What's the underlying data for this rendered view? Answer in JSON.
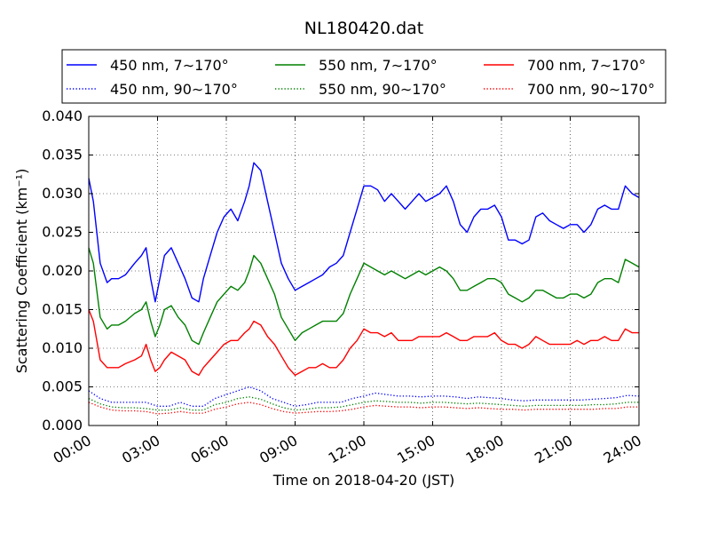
{
  "chart_data": {
    "type": "line",
    "title": "NL180420.dat",
    "xlabel": "Time on 2018-04-20 (JST)",
    "ylabel": "Scattering Coefficient (km⁻¹)",
    "xlim": [
      0,
      24
    ],
    "ylim": [
      0.0,
      0.04
    ],
    "x_ticks": [
      {
        "value": 0,
        "label": "00:00"
      },
      {
        "value": 3,
        "label": "03:00"
      },
      {
        "value": 6,
        "label": "06:00"
      },
      {
        "value": 9,
        "label": "09:00"
      },
      {
        "value": 12,
        "label": "12:00"
      },
      {
        "value": 15,
        "label": "15:00"
      },
      {
        "value": 18,
        "label": "18:00"
      },
      {
        "value": 21,
        "label": "21:00"
      },
      {
        "value": 24,
        "label": "24:00"
      }
    ],
    "y_ticks": [
      {
        "value": 0.0,
        "label": "0.000"
      },
      {
        "value": 0.005,
        "label": "0.005"
      },
      {
        "value": 0.01,
        "label": "0.010"
      },
      {
        "value": 0.015,
        "label": "0.015"
      },
      {
        "value": 0.02,
        "label": "0.020"
      },
      {
        "value": 0.025,
        "label": "0.025"
      },
      {
        "value": 0.03,
        "label": "0.030"
      },
      {
        "value": 0.035,
        "label": "0.035"
      },
      {
        "value": 0.04,
        "label": "0.040"
      }
    ],
    "grid": true,
    "legend_position": "top",
    "x_unit": "hours after 00:00",
    "series": [
      {
        "name": "450 nm, 7∼170°",
        "color": "#0000ff",
        "dash": "solid",
        "x": [
          0,
          0.2,
          0.5,
          0.8,
          1.0,
          1.3,
          1.6,
          2.0,
          2.3,
          2.5,
          2.7,
          2.9,
          3.1,
          3.3,
          3.6,
          3.9,
          4.2,
          4.5,
          4.8,
          5.0,
          5.3,
          5.6,
          5.9,
          6.2,
          6.5,
          6.8,
          7.0,
          7.2,
          7.5,
          7.8,
          8.1,
          8.4,
          8.7,
          9.0,
          9.3,
          9.6,
          9.9,
          10.2,
          10.5,
          10.8,
          11.1,
          11.4,
          11.7,
          12.0,
          12.3,
          12.6,
          12.9,
          13.2,
          13.5,
          13.8,
          14.1,
          14.4,
          14.7,
          15.0,
          15.3,
          15.6,
          15.9,
          16.2,
          16.5,
          16.8,
          17.1,
          17.4,
          17.7,
          18.0,
          18.3,
          18.6,
          18.9,
          19.2,
          19.5,
          19.8,
          20.1,
          20.4,
          20.7,
          21.0,
          21.3,
          21.6,
          21.9,
          22.2,
          22.5,
          22.8,
          23.1,
          23.4,
          23.7,
          24.0
        ],
        "y": [
          0.032,
          0.029,
          0.021,
          0.0185,
          0.019,
          0.019,
          0.0195,
          0.021,
          0.022,
          0.023,
          0.019,
          0.016,
          0.019,
          0.022,
          0.023,
          0.021,
          0.019,
          0.0165,
          0.016,
          0.019,
          0.022,
          0.025,
          0.027,
          0.028,
          0.0265,
          0.029,
          0.031,
          0.034,
          0.033,
          0.029,
          0.025,
          0.021,
          0.019,
          0.0175,
          0.018,
          0.0185,
          0.019,
          0.0195,
          0.0205,
          0.021,
          0.022,
          0.025,
          0.028,
          0.031,
          0.031,
          0.0305,
          0.029,
          0.03,
          0.029,
          0.028,
          0.029,
          0.03,
          0.029,
          0.0295,
          0.03,
          0.031,
          0.029,
          0.026,
          0.025,
          0.027,
          0.028,
          0.028,
          0.0285,
          0.027,
          0.024,
          0.024,
          0.0235,
          0.024,
          0.027,
          0.0275,
          0.0265,
          0.026,
          0.0255,
          0.026,
          0.026,
          0.025,
          0.026,
          0.028,
          0.0285,
          0.028,
          0.028,
          0.031,
          0.03,
          0.0295
        ]
      },
      {
        "name": "550 nm, 7∼170°",
        "color": "#008000",
        "dash": "solid",
        "x": [
          0,
          0.2,
          0.5,
          0.8,
          1.0,
          1.3,
          1.6,
          2.0,
          2.3,
          2.5,
          2.7,
          2.9,
          3.1,
          3.3,
          3.6,
          3.9,
          4.2,
          4.5,
          4.8,
          5.0,
          5.3,
          5.6,
          5.9,
          6.2,
          6.5,
          6.8,
          7.0,
          7.2,
          7.5,
          7.8,
          8.1,
          8.4,
          8.7,
          9.0,
          9.3,
          9.6,
          9.9,
          10.2,
          10.5,
          10.8,
          11.1,
          11.4,
          11.7,
          12.0,
          12.3,
          12.6,
          12.9,
          13.2,
          13.5,
          13.8,
          14.1,
          14.4,
          14.7,
          15.0,
          15.3,
          15.6,
          15.9,
          16.2,
          16.5,
          16.8,
          17.1,
          17.4,
          17.7,
          18.0,
          18.3,
          18.6,
          18.9,
          19.2,
          19.5,
          19.8,
          20.1,
          20.4,
          20.7,
          21.0,
          21.3,
          21.6,
          21.9,
          22.2,
          22.5,
          22.8,
          23.1,
          23.4,
          23.7,
          24.0
        ],
        "y": [
          0.023,
          0.021,
          0.014,
          0.0125,
          0.013,
          0.013,
          0.0135,
          0.0145,
          0.015,
          0.016,
          0.0135,
          0.0115,
          0.013,
          0.015,
          0.0155,
          0.014,
          0.013,
          0.011,
          0.0105,
          0.012,
          0.014,
          0.016,
          0.017,
          0.018,
          0.0175,
          0.0185,
          0.02,
          0.022,
          0.021,
          0.019,
          0.017,
          0.014,
          0.0125,
          0.011,
          0.012,
          0.0125,
          0.013,
          0.0135,
          0.0135,
          0.0135,
          0.0145,
          0.017,
          0.019,
          0.021,
          0.0205,
          0.02,
          0.0195,
          0.02,
          0.0195,
          0.019,
          0.0195,
          0.02,
          0.0195,
          0.02,
          0.0205,
          0.02,
          0.019,
          0.0175,
          0.0175,
          0.018,
          0.0185,
          0.019,
          0.019,
          0.0185,
          0.017,
          0.0165,
          0.016,
          0.0165,
          0.0175,
          0.0175,
          0.017,
          0.0165,
          0.0165,
          0.017,
          0.017,
          0.0165,
          0.017,
          0.0185,
          0.019,
          0.019,
          0.0185,
          0.0215,
          0.021,
          0.0205
        ]
      },
      {
        "name": "700 nm, 7∼170°",
        "color": "#ff0000",
        "dash": "solid",
        "x": [
          0,
          0.2,
          0.5,
          0.8,
          1.0,
          1.3,
          1.6,
          2.0,
          2.3,
          2.5,
          2.7,
          2.9,
          3.1,
          3.3,
          3.6,
          3.9,
          4.2,
          4.5,
          4.8,
          5.0,
          5.3,
          5.6,
          5.9,
          6.2,
          6.5,
          6.8,
          7.0,
          7.2,
          7.5,
          7.8,
          8.1,
          8.4,
          8.7,
          9.0,
          9.3,
          9.6,
          9.9,
          10.2,
          10.5,
          10.8,
          11.1,
          11.4,
          11.7,
          12.0,
          12.3,
          12.6,
          12.9,
          13.2,
          13.5,
          13.8,
          14.1,
          14.4,
          14.7,
          15.0,
          15.3,
          15.6,
          15.9,
          16.2,
          16.5,
          16.8,
          17.1,
          17.4,
          17.7,
          18.0,
          18.3,
          18.6,
          18.9,
          19.2,
          19.5,
          19.8,
          20.1,
          20.4,
          20.7,
          21.0,
          21.3,
          21.6,
          21.9,
          22.2,
          22.5,
          22.8,
          23.1,
          23.4,
          23.7,
          24.0
        ],
        "y": [
          0.015,
          0.0135,
          0.0085,
          0.0075,
          0.0075,
          0.0075,
          0.008,
          0.0085,
          0.009,
          0.0105,
          0.0085,
          0.007,
          0.0075,
          0.0085,
          0.0095,
          0.009,
          0.0085,
          0.007,
          0.0065,
          0.0075,
          0.0085,
          0.0095,
          0.0105,
          0.011,
          0.011,
          0.012,
          0.0125,
          0.0135,
          0.013,
          0.0115,
          0.0105,
          0.009,
          0.0075,
          0.0065,
          0.007,
          0.0075,
          0.0075,
          0.008,
          0.0075,
          0.0075,
          0.0085,
          0.01,
          0.011,
          0.0125,
          0.012,
          0.012,
          0.0115,
          0.012,
          0.011,
          0.011,
          0.011,
          0.0115,
          0.0115,
          0.0115,
          0.0115,
          0.012,
          0.0115,
          0.011,
          0.011,
          0.0115,
          0.0115,
          0.0115,
          0.012,
          0.011,
          0.0105,
          0.0105,
          0.01,
          0.0105,
          0.0115,
          0.011,
          0.0105,
          0.0105,
          0.0105,
          0.0105,
          0.011,
          0.0105,
          0.011,
          0.011,
          0.0115,
          0.011,
          0.011,
          0.0125,
          0.012,
          0.012
        ]
      },
      {
        "name": "450 nm, 90∼170°",
        "color": "#0000ff",
        "dash": "dotted",
        "x": [
          0,
          0.5,
          1.0,
          1.5,
          2.0,
          2.5,
          3.0,
          3.5,
          4.0,
          4.5,
          5.0,
          5.5,
          6.0,
          6.5,
          7.0,
          7.5,
          8.0,
          8.5,
          9.0,
          9.5,
          10.0,
          10.5,
          11.0,
          11.5,
          12.0,
          12.5,
          13.0,
          13.5,
          14.0,
          14.5,
          15.0,
          15.5,
          16.0,
          16.5,
          17.0,
          17.5,
          18.0,
          18.5,
          19.0,
          19.5,
          20.0,
          20.5,
          21.0,
          21.5,
          22.0,
          22.5,
          23.0,
          23.5,
          24.0
        ],
        "y": [
          0.0045,
          0.0035,
          0.003,
          0.003,
          0.003,
          0.003,
          0.0025,
          0.0025,
          0.003,
          0.0025,
          0.0025,
          0.0035,
          0.004,
          0.0045,
          0.005,
          0.0045,
          0.0035,
          0.003,
          0.0025,
          0.0027,
          0.003,
          0.003,
          0.003,
          0.0035,
          0.0038,
          0.0042,
          0.004,
          0.0038,
          0.0038,
          0.0037,
          0.0038,
          0.0038,
          0.0037,
          0.0035,
          0.0037,
          0.0036,
          0.0035,
          0.0033,
          0.0032,
          0.0033,
          0.0033,
          0.0033,
          0.0033,
          0.0033,
          0.0034,
          0.0035,
          0.0036,
          0.0039,
          0.0038
        ]
      },
      {
        "name": "550 nm, 90∼170°",
        "color": "#008000",
        "dash": "dotted",
        "x": [
          0,
          0.5,
          1.0,
          1.5,
          2.0,
          2.5,
          3.0,
          3.5,
          4.0,
          4.5,
          5.0,
          5.5,
          6.0,
          6.5,
          7.0,
          7.5,
          8.0,
          8.5,
          9.0,
          9.5,
          10.0,
          10.5,
          11.0,
          11.5,
          12.0,
          12.5,
          13.0,
          13.5,
          14.0,
          14.5,
          15.0,
          15.5,
          16.0,
          16.5,
          17.0,
          17.5,
          18.0,
          18.5,
          19.0,
          19.5,
          20.0,
          20.5,
          21.0,
          21.5,
          22.0,
          22.5,
          23.0,
          23.5,
          24.0
        ],
        "y": [
          0.0035,
          0.0028,
          0.0024,
          0.0023,
          0.0023,
          0.0022,
          0.002,
          0.002,
          0.0023,
          0.002,
          0.002,
          0.0027,
          0.003,
          0.0035,
          0.0037,
          0.0034,
          0.0028,
          0.0023,
          0.002,
          0.0021,
          0.0023,
          0.0023,
          0.0024,
          0.0027,
          0.003,
          0.0032,
          0.0031,
          0.003,
          0.003,
          0.0029,
          0.003,
          0.003,
          0.0029,
          0.0028,
          0.0029,
          0.0028,
          0.0027,
          0.0026,
          0.0025,
          0.0026,
          0.0026,
          0.0026,
          0.0026,
          0.0026,
          0.0027,
          0.0027,
          0.0028,
          0.003,
          0.003
        ]
      },
      {
        "name": "700 nm, 90∼170°",
        "color": "#ff0000",
        "dash": "dotted",
        "x": [
          0,
          0.5,
          1.0,
          1.5,
          2.0,
          2.5,
          3.0,
          3.5,
          4.0,
          4.5,
          5.0,
          5.5,
          6.0,
          6.5,
          7.0,
          7.5,
          8.0,
          8.5,
          9.0,
          9.5,
          10.0,
          10.5,
          11.0,
          11.5,
          12.0,
          12.5,
          13.0,
          13.5,
          14.0,
          14.5,
          15.0,
          15.5,
          16.0,
          16.5,
          17.0,
          17.5,
          18.0,
          18.5,
          19.0,
          19.5,
          20.0,
          20.5,
          21.0,
          21.5,
          22.0,
          22.5,
          23.0,
          23.5,
          24.0
        ],
        "y": [
          0.003,
          0.0024,
          0.002,
          0.0019,
          0.0019,
          0.0018,
          0.0015,
          0.0016,
          0.0018,
          0.0016,
          0.0016,
          0.0021,
          0.0024,
          0.0028,
          0.003,
          0.0027,
          0.0022,
          0.0018,
          0.0016,
          0.0017,
          0.0018,
          0.0018,
          0.0019,
          0.0021,
          0.0024,
          0.0026,
          0.0025,
          0.0024,
          0.0024,
          0.0023,
          0.0024,
          0.0024,
          0.0023,
          0.0022,
          0.0023,
          0.0022,
          0.0021,
          0.0021,
          0.002,
          0.0021,
          0.0021,
          0.0021,
          0.0021,
          0.0021,
          0.0021,
          0.0022,
          0.0022,
          0.0024,
          0.0024
        ]
      }
    ]
  }
}
